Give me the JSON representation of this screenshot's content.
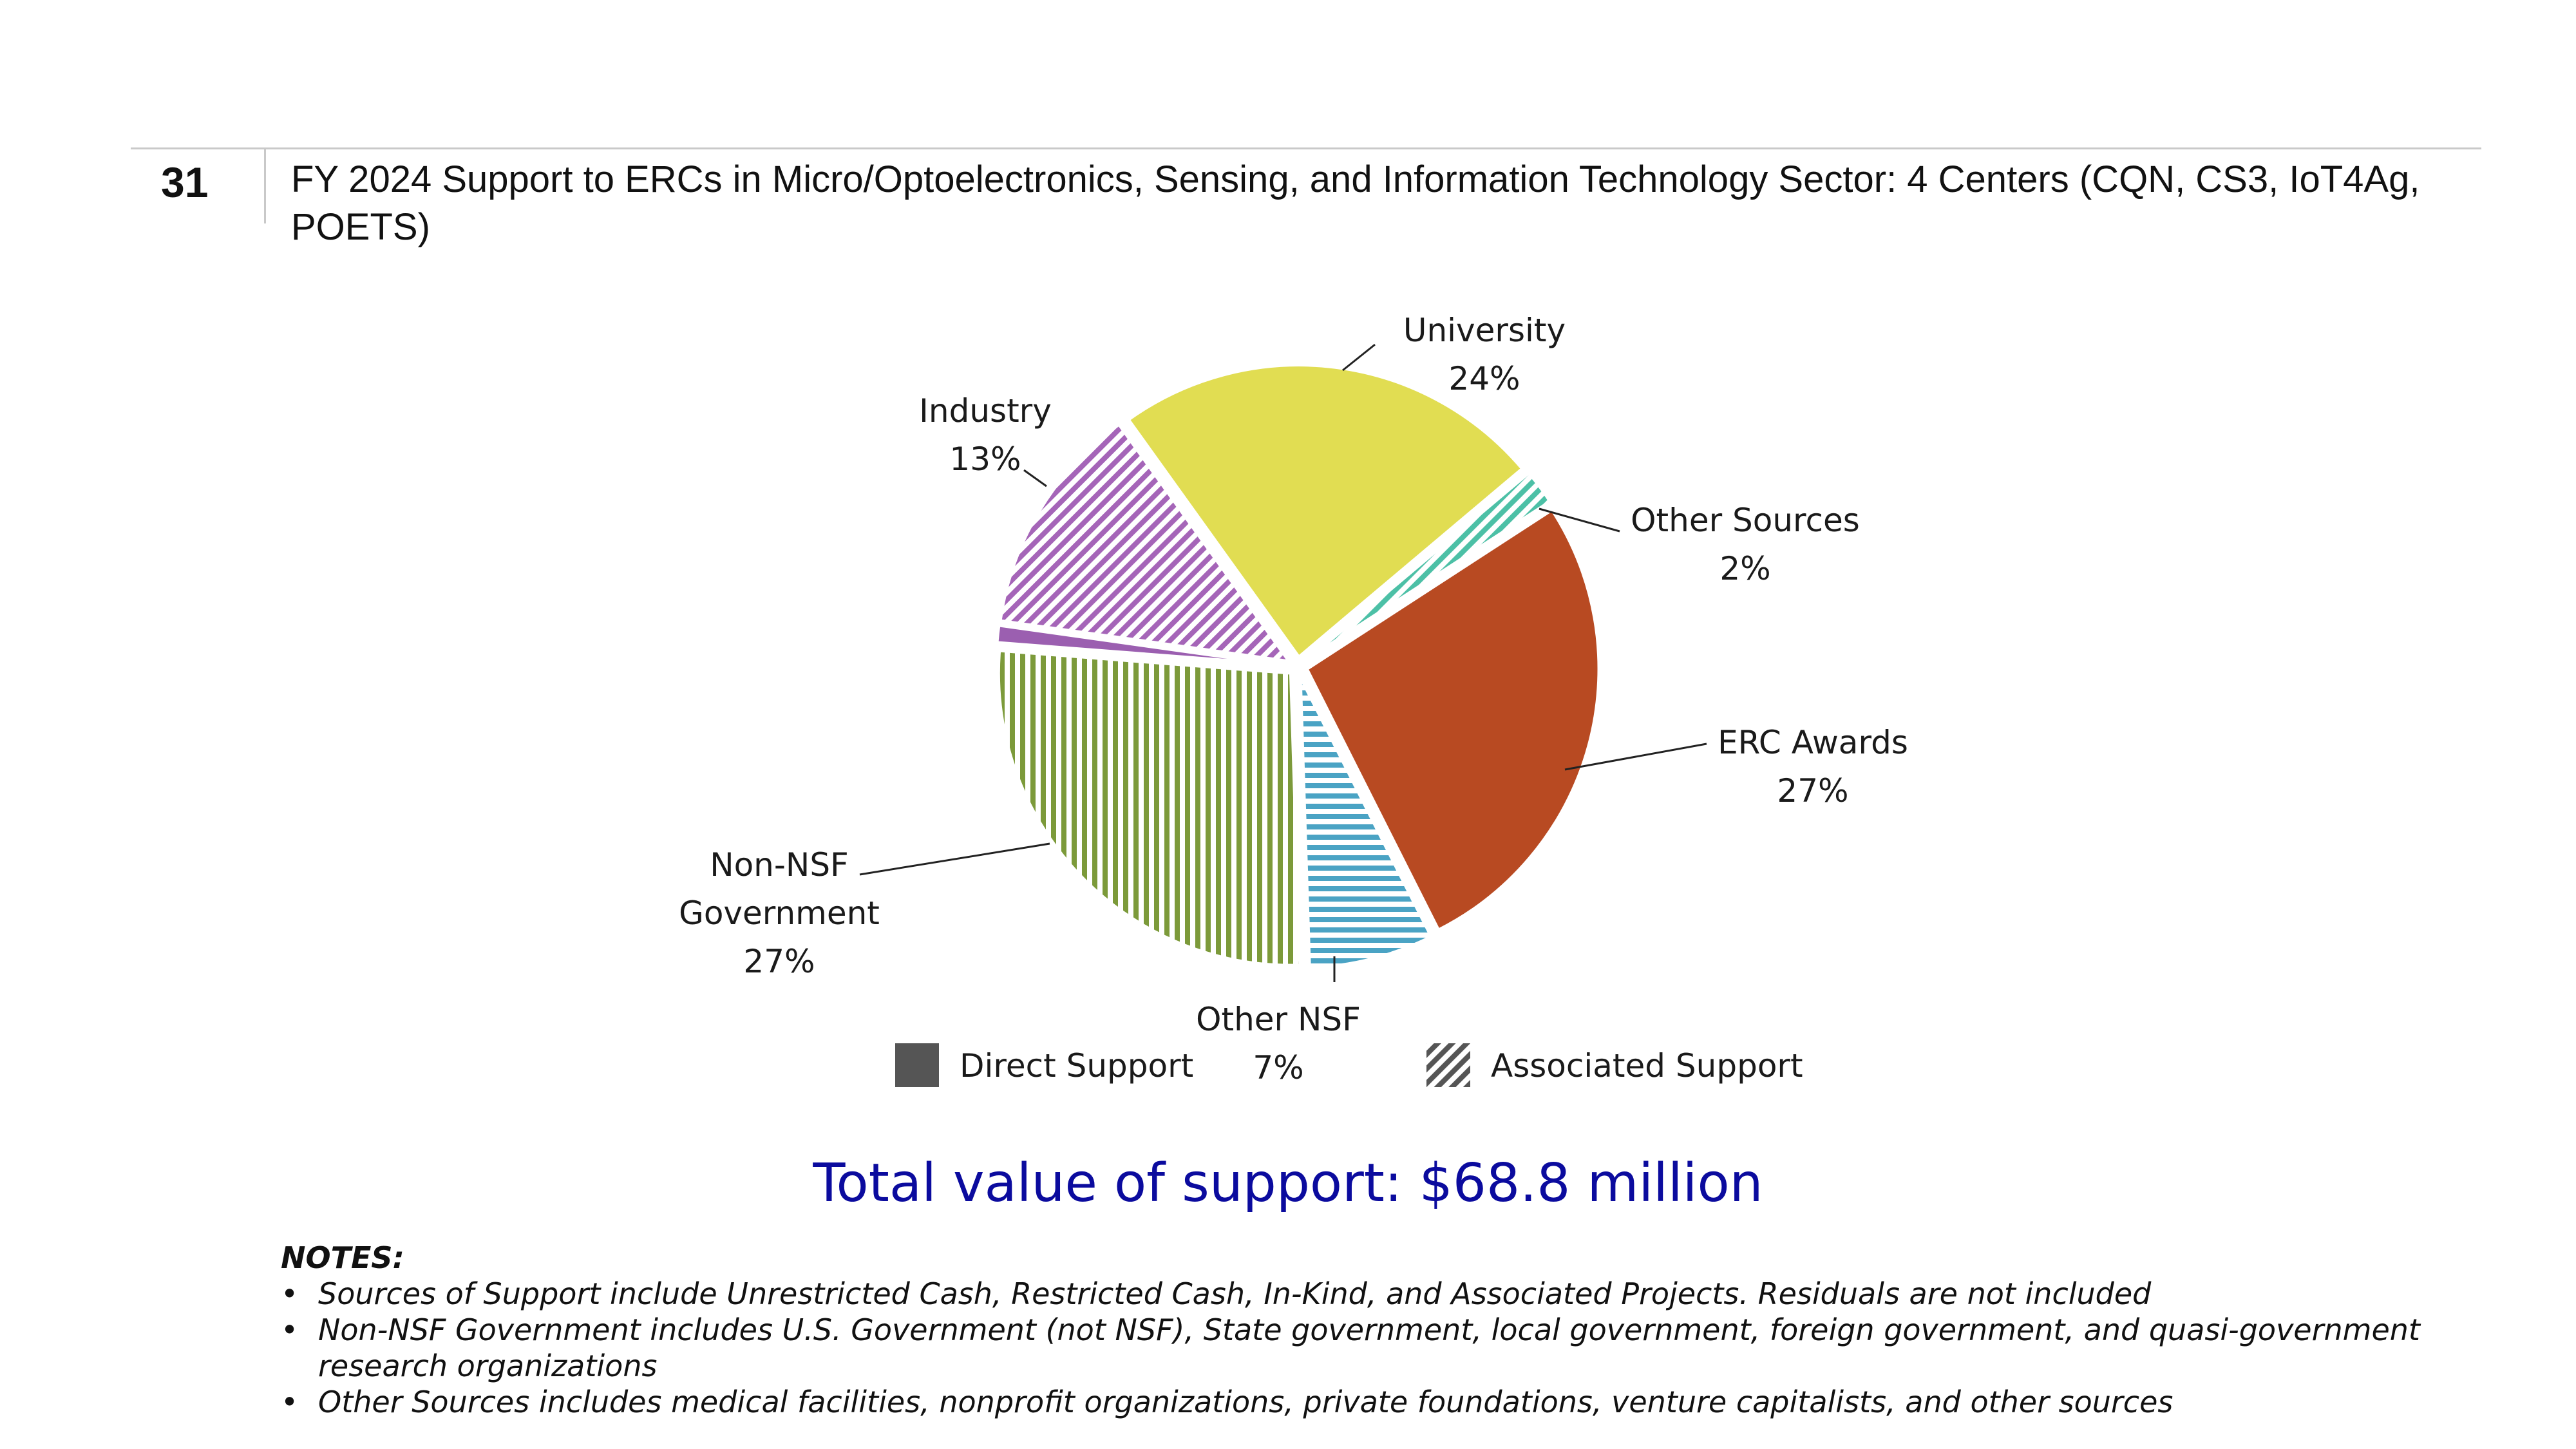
{
  "slide": {
    "number": "31",
    "title": "FY 2024 Support to ERCs in Micro/Optoelectronics, Sensing, and Information Technology Sector: 4 Centers (CQN, CS3, IoT4Ag, POETS)"
  },
  "chart_data": {
    "type": "pie",
    "slices": [
      {
        "label": "ERC Awards",
        "percent_label": "27%",
        "value": 27,
        "color": "#b84a22",
        "pattern": "solid"
      },
      {
        "label": "Other NSF",
        "percent_label": "7%",
        "value": 7,
        "color": "#4aa3c4",
        "pattern": "horizontal-stripes"
      },
      {
        "label": "Non-NSF\nGovernment",
        "percent_label": "27%",
        "value": 27,
        "color": "#7c9a3a",
        "pattern": "vertical-stripes"
      },
      {
        "label": "",
        "percent_label": "",
        "value": 1,
        "color": "#9b5fb0",
        "pattern": "solid"
      },
      {
        "label": "Industry",
        "percent_label": "13%",
        "value": 13,
        "color": "#a565b8",
        "pattern": "diagonal-stripes"
      },
      {
        "label": "University",
        "percent_label": "24%",
        "value": 24,
        "color": "#e1dd52",
        "pattern": "solid"
      },
      {
        "label": "Other Sources",
        "percent_label": "2%",
        "value": 2,
        "color": "#4cc0a6",
        "pattern": "diagonal-stripes"
      }
    ],
    "legend": [
      {
        "label": "Direct Support",
        "pattern": "solid",
        "color": "#555555"
      },
      {
        "label": "Associated Support",
        "pattern": "diagonal-stripes",
        "color": "#555555"
      }
    ],
    "legend_position": "bottom"
  },
  "total": "Total value of support: $68.8 million",
  "notes": {
    "heading": "NOTES:",
    "items": [
      "Sources of Support include Unrestricted Cash, Restricted Cash, In-Kind, and Associated Projects. Residuals are not included",
      "Non-NSF Government includes U.S. Government (not NSF), State government, local government, foreign government, and quasi-government research organizations",
      "Other Sources includes medical facilities, nonprofit organizations, private foundations, venture capitalists, and other sources"
    ]
  }
}
